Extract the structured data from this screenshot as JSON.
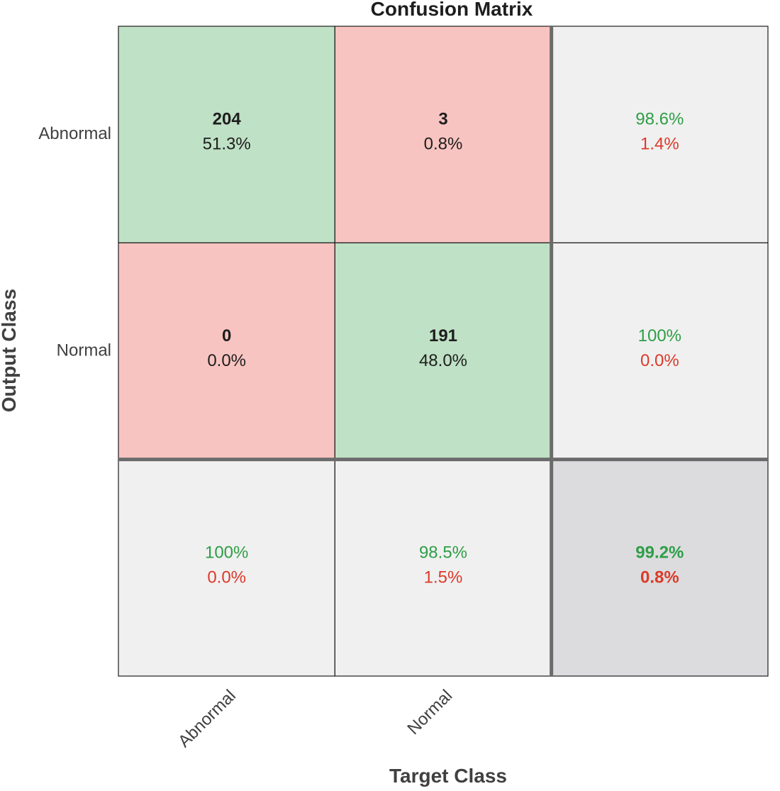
{
  "chart_data": {
    "type": "heatmap",
    "title": "Confusion Matrix",
    "xlabel": "Target Class",
    "ylabel": "Output Class",
    "classes": [
      "Abnormal",
      "Normal"
    ],
    "counts": [
      [
        204,
        3
      ],
      [
        0,
        191
      ]
    ],
    "cell_percent": [
      [
        "51.3%",
        "0.8%"
      ],
      [
        "0.0%",
        "48.0%"
      ]
    ],
    "row_summary": [
      {
        "correct": "98.6%",
        "incorrect": "1.4%"
      },
      {
        "correct": "100%",
        "incorrect": "0.0%"
      }
    ],
    "col_summary": [
      {
        "correct": "100%",
        "incorrect": "0.0%"
      },
      {
        "correct": "98.5%",
        "incorrect": "1.5%"
      }
    ],
    "overall": {
      "correct": "99.2%",
      "incorrect": "0.8%"
    },
    "colors": {
      "correct_fill": "#bfe1c5",
      "incorrect_fill": "#f8c4c1",
      "summary_fill": "#f0f0f0",
      "overall_fill": "#dcdcde",
      "correct_text": "#2e9e46",
      "incorrect_text": "#dc3a2a",
      "value_text": "#1e1e1e",
      "label_text": "#404040",
      "divider": "#6b6b6b"
    }
  }
}
